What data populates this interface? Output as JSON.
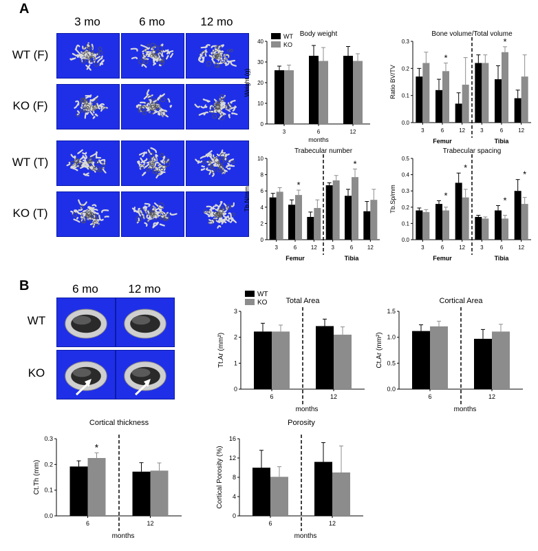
{
  "panel_a": {
    "label": "A",
    "column_headers": [
      "3 mo",
      "6 mo",
      "12 mo"
    ],
    "row_labels": [
      "WT (F)",
      "KO (F)",
      "WT (T)",
      "KO (T)"
    ],
    "scan_grid": [
      [
        "wt-f-3mo-scan",
        "wt-f-6mo-scan",
        "wt-f-12mo-scan"
      ],
      [
        "ko-f-3mo-scan",
        "ko-f-6mo-scan",
        "ko-f-12mo-scan"
      ],
      [
        "wt-t-3mo-scan",
        "wt-t-6mo-scan",
        "wt-t-12mo-scan"
      ],
      [
        "ko-t-3mo-scan",
        "ko-t-6mo-scan",
        "ko-t-12mo-scan"
      ]
    ]
  },
  "panel_b": {
    "label": "B",
    "column_headers": [
      "6 mo",
      "12 mo"
    ],
    "row_labels": [
      "WT",
      "KO"
    ],
    "scan_grid": [
      [
        "wt-6mo-cortical-scan",
        "wt-12mo-cortical-scan"
      ],
      [
        "ko-6mo-cortical-scan",
        "ko-12mo-cortical-scan"
      ]
    ],
    "arrow_cells": [
      [
        1,
        0
      ],
      [
        1,
        1
      ]
    ]
  },
  "colors": {
    "wt": "#000000",
    "ko": "#8c8c8c",
    "scan_bg": "#1f2fe8"
  },
  "chart_data": [
    {
      "id": "body-weight",
      "type": "bar",
      "title": "Body weight",
      "ylabel": "Weight (g)",
      "xlabel": "months",
      "ylim": [
        0,
        40
      ],
      "yticks": [
        0,
        10,
        20,
        30,
        40
      ],
      "categories": [
        "3",
        "6",
        "12"
      ],
      "series": [
        {
          "name": "WT",
          "values": [
            26,
            33,
            33
          ],
          "errors": [
            2,
            5,
            4.5
          ]
        },
        {
          "name": "KO",
          "values": [
            26,
            30.5,
            30.5
          ],
          "errors": [
            2.5,
            6.5,
            3.5
          ]
        }
      ],
      "legend": "top-left",
      "groups": [],
      "divider_after": null,
      "significant": []
    },
    {
      "id": "bv-tv",
      "type": "bar",
      "title": "Bone volume/Total volume",
      "ylabel": "Ratio BV/TV",
      "xlabel": "",
      "ylim": [
        0,
        0.3
      ],
      "yticks": [
        "0.0",
        "0.1",
        "0.2",
        "0.3"
      ],
      "categories": [
        "3",
        "6",
        "12",
        "3",
        "6",
        "12"
      ],
      "series": [
        {
          "name": "WT",
          "values": [
            0.17,
            0.12,
            0.07,
            0.22,
            0.16,
            0.09
          ],
          "errors": [
            0.03,
            0.04,
            0.04,
            0.03,
            0.05,
            0.03
          ]
        },
        {
          "name": "KO",
          "values": [
            0.22,
            0.19,
            0.14,
            0.22,
            0.26,
            0.17
          ],
          "errors": [
            0.04,
            0.03,
            0.1,
            0.03,
            0.02,
            0.08
          ]
        }
      ],
      "groups": [
        "Femur",
        "Tibia"
      ],
      "divider_after": 3,
      "significant": [
        1,
        4
      ]
    },
    {
      "id": "trabecular-number",
      "type": "bar",
      "title": "Trabecular number",
      "ylabel": "Tb.N/mm",
      "xlabel": "",
      "ylim": [
        0,
        10
      ],
      "yticks": [
        0,
        2,
        4,
        6,
        8,
        10
      ],
      "categories": [
        "3",
        "6",
        "12",
        "3",
        "6",
        "12"
      ],
      "series": [
        {
          "name": "WT",
          "values": [
            5.2,
            4.3,
            2.8,
            6.7,
            5.4,
            3.5
          ],
          "errors": [
            0.5,
            0.6,
            0.6,
            0.3,
            0.8,
            1.2
          ]
        },
        {
          "name": "KO",
          "values": [
            5.9,
            5.5,
            3.9,
            7.3,
            7.7,
            4.9
          ],
          "errors": [
            0.5,
            0.6,
            1.0,
            0.6,
            1.0,
            1.3
          ]
        }
      ],
      "groups": [
        "Femur",
        "Tibia"
      ],
      "divider_after": 3,
      "significant": [
        1,
        4
      ]
    },
    {
      "id": "trabecular-spacing",
      "type": "bar",
      "title": "Trabecular spacing",
      "ylabel": "Tb.Sp/mm",
      "xlabel": "",
      "ylim": [
        0,
        0.5
      ],
      "yticks": [
        "0.0",
        "0.1",
        "0.2",
        "0.3",
        "0.4",
        "0.5"
      ],
      "categories": [
        "3",
        "6",
        "12",
        "3",
        "6",
        "12"
      ],
      "series": [
        {
          "name": "WT",
          "values": [
            0.18,
            0.22,
            0.35,
            0.14,
            0.18,
            0.3
          ],
          "errors": [
            0.015,
            0.02,
            0.06,
            0.01,
            0.03,
            0.07
          ]
        },
        {
          "name": "KO",
          "values": [
            0.17,
            0.18,
            0.26,
            0.13,
            0.13,
            0.22
          ],
          "errors": [
            0.015,
            0.02,
            0.05,
            0.01,
            0.02,
            0.04
          ]
        }
      ],
      "groups": [
        "Femur",
        "Tibia"
      ],
      "divider_after": 3,
      "significant": [
        1,
        2,
        4,
        5
      ]
    },
    {
      "id": "total-area",
      "type": "bar",
      "title": "Total Area",
      "ylabel": "Tt.Ar (mm²)",
      "xlabel": "months",
      "ylim": [
        0,
        3
      ],
      "yticks": [
        0,
        1,
        2,
        3
      ],
      "categories": [
        "6",
        "12"
      ],
      "series": [
        {
          "name": "WT",
          "values": [
            2.22,
            2.43
          ],
          "errors": [
            0.32,
            0.27
          ]
        },
        {
          "name": "KO",
          "values": [
            2.22,
            2.1
          ],
          "errors": [
            0.25,
            0.3
          ]
        }
      ],
      "legend": "top-left",
      "groups": [],
      "divider_after": 1,
      "significant": []
    },
    {
      "id": "cortical-area",
      "type": "bar",
      "title": "Cortical Area",
      "ylabel": "Ct.Ar (mm²)",
      "xlabel": "months",
      "ylim": [
        0,
        1.5
      ],
      "yticks": [
        "0.0",
        "0.5",
        "1.0",
        "1.5"
      ],
      "categories": [
        "6",
        "12"
      ],
      "series": [
        {
          "name": "WT",
          "values": [
            1.12,
            0.97
          ],
          "errors": [
            0.12,
            0.18
          ]
        },
        {
          "name": "KO",
          "values": [
            1.21,
            1.11
          ],
          "errors": [
            0.1,
            0.14
          ]
        }
      ],
      "groups": [],
      "divider_after": 1,
      "significant": []
    },
    {
      "id": "cortical-thickness",
      "type": "bar",
      "title": "Cortical thickness",
      "ylabel": "Ct.Th (mm)",
      "xlabel": "months",
      "ylim": [
        0,
        0.3
      ],
      "yticks": [
        "0.0",
        "0.1",
        "0.2",
        "0.3"
      ],
      "categories": [
        "6",
        "12"
      ],
      "series": [
        {
          "name": "WT",
          "values": [
            0.192,
            0.172
          ],
          "errors": [
            0.022,
            0.035
          ]
        },
        {
          "name": "KO",
          "values": [
            0.225,
            0.176
          ],
          "errors": [
            0.02,
            0.03
          ]
        }
      ],
      "groups": [],
      "divider_after": 1,
      "significant": [
        0
      ]
    },
    {
      "id": "porosity",
      "type": "bar",
      "title": "Porosity",
      "ylabel": "Cortical Porosity (%)",
      "xlabel": "months",
      "ylim": [
        0,
        16
      ],
      "yticks": [
        0,
        4,
        8,
        12,
        16
      ],
      "categories": [
        "6",
        "12"
      ],
      "series": [
        {
          "name": "WT",
          "values": [
            10,
            11.2
          ],
          "errors": [
            3.6,
            4.0
          ]
        },
        {
          "name": "KO",
          "values": [
            8.1,
            9.0
          ],
          "errors": [
            2.1,
            5.5
          ]
        }
      ],
      "groups": [],
      "divider_after": 1,
      "significant": []
    }
  ]
}
